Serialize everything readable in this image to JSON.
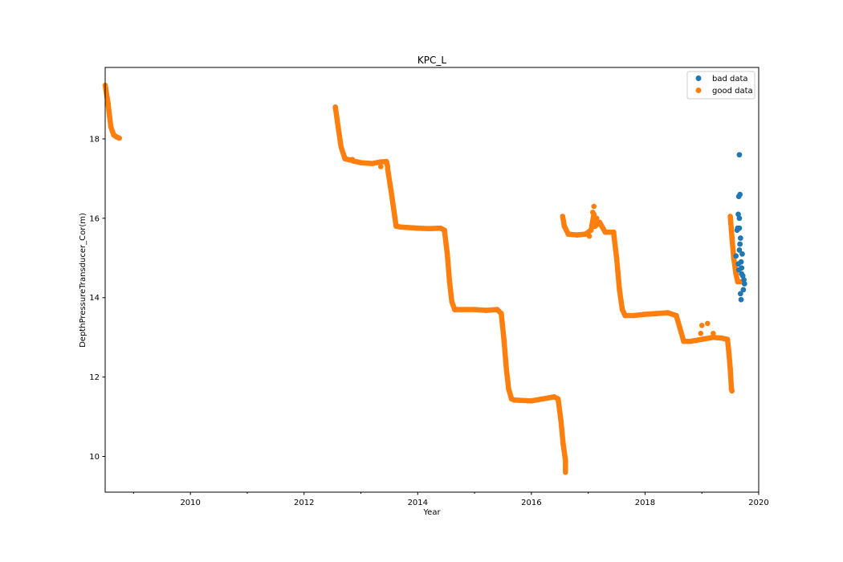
{
  "chart_data": {
    "type": "scatter",
    "title": "KPC_L",
    "xlabel": "Year",
    "ylabel": "DepthPressureTransducer_Cor(m)",
    "xlim": [
      2008.5,
      2020.0
    ],
    "ylim": [
      9.1,
      19.8
    ],
    "x_ticks": [
      2010,
      2012,
      2014,
      2016,
      2018,
      2020
    ],
    "x_tick_labels": [
      "2010",
      "2012",
      "2014",
      "2016",
      "2018",
      "2020"
    ],
    "y_ticks": [
      10,
      12,
      14,
      16,
      18
    ],
    "y_tick_labels": [
      "10",
      "12",
      "14",
      "16",
      "18"
    ],
    "legend_position": "top-right",
    "grid": false,
    "series": [
      {
        "name": "bad data",
        "color": "#1f77b4",
        "points": [
          [
            2012.55,
            18.8
          ],
          [
            2019.6,
            15.05
          ],
          [
            2019.62,
            15.7
          ],
          [
            2019.64,
            16.1
          ],
          [
            2019.65,
            16.55
          ],
          [
            2019.66,
            17.6
          ],
          [
            2019.67,
            16.6
          ],
          [
            2019.66,
            15.75
          ],
          [
            2019.68,
            15.5
          ],
          [
            2019.66,
            15.2
          ],
          [
            2019.69,
            14.9
          ],
          [
            2019.65,
            14.7
          ],
          [
            2019.7,
            14.6
          ],
          [
            2019.72,
            14.55
          ],
          [
            2019.74,
            14.45
          ],
          [
            2019.75,
            14.35
          ],
          [
            2019.73,
            14.2
          ],
          [
            2019.68,
            14.1
          ],
          [
            2019.69,
            13.95
          ],
          [
            2019.67,
            15.35
          ],
          [
            2019.71,
            15.1
          ],
          [
            2019.64,
            14.85
          ],
          [
            2019.7,
            14.75
          ],
          [
            2019.66,
            16.0
          ],
          [
            2019.63,
            15.75
          ]
        ]
      },
      {
        "name": "good data",
        "color": "#ff7f0e",
        "segments": [
          [
            [
              2008.5,
              19.35
            ],
            [
              2008.55,
              18.9
            ],
            [
              2008.6,
              18.3
            ],
            [
              2008.65,
              18.1
            ],
            [
              2008.7,
              18.05
            ],
            [
              2008.75,
              18.02
            ]
          ],
          [
            [
              2012.55,
              18.8
            ],
            [
              2012.6,
              18.3
            ],
            [
              2012.65,
              17.8
            ],
            [
              2012.72,
              17.5
            ],
            [
              2012.8,
              17.47
            ],
            [
              2012.85,
              17.48
            ]
          ],
          [
            [
              2012.85,
              17.45
            ],
            [
              2013.0,
              17.4
            ],
            [
              2013.2,
              17.38
            ],
            [
              2013.35,
              17.42
            ],
            [
              2013.45,
              17.43
            ],
            [
              2013.47,
              17.3
            ]
          ],
          [
            [
              2013.47,
              17.25
            ],
            [
              2013.53,
              16.7
            ],
            [
              2013.58,
              16.2
            ],
            [
              2013.62,
              15.8
            ],
            [
              2013.7,
              15.78
            ]
          ],
          [
            [
              2013.7,
              15.78
            ],
            [
              2014.0,
              15.75
            ],
            [
              2014.2,
              15.74
            ],
            [
              2014.4,
              15.75
            ],
            [
              2014.47,
              15.7
            ]
          ],
          [
            [
              2014.47,
              15.7
            ],
            [
              2014.52,
              15.1
            ],
            [
              2014.56,
              14.4
            ],
            [
              2014.6,
              13.9
            ],
            [
              2014.65,
              13.7
            ],
            [
              2014.7,
              13.7
            ]
          ],
          [
            [
              2014.7,
              13.7
            ],
            [
              2015.0,
              13.7
            ],
            [
              2015.2,
              13.68
            ],
            [
              2015.4,
              13.7
            ],
            [
              2015.47,
              13.6
            ]
          ],
          [
            [
              2015.47,
              13.6
            ],
            [
              2015.52,
              12.9
            ],
            [
              2015.56,
              12.2
            ],
            [
              2015.6,
              11.7
            ],
            [
              2015.65,
              11.45
            ],
            [
              2015.7,
              11.42
            ]
          ],
          [
            [
              2015.7,
              11.42
            ],
            [
              2016.0,
              11.4
            ],
            [
              2016.2,
              11.45
            ],
            [
              2016.4,
              11.5
            ],
            [
              2016.47,
              11.45
            ]
          ],
          [
            [
              2016.47,
              11.45
            ],
            [
              2016.52,
              10.9
            ],
            [
              2016.56,
              10.3
            ],
            [
              2016.6,
              9.9
            ],
            [
              2016.6,
              9.6
            ]
          ],
          [
            [
              2016.55,
              16.05
            ],
            [
              2016.58,
              15.8
            ],
            [
              2016.65,
              15.6
            ],
            [
              2016.8,
              15.58
            ],
            [
              2016.95,
              15.6
            ]
          ],
          [
            [
              2016.95,
              15.6
            ],
            [
              2017.05,
              15.7
            ],
            [
              2017.1,
              16.1
            ],
            [
              2017.12,
              15.8
            ],
            [
              2017.2,
              15.9
            ],
            [
              2017.3,
              15.65
            ],
            [
              2017.45,
              15.65
            ]
          ],
          [
            [
              2017.45,
              15.6
            ],
            [
              2017.5,
              15.0
            ],
            [
              2017.55,
              14.2
            ],
            [
              2017.6,
              13.7
            ],
            [
              2017.65,
              13.55
            ],
            [
              2017.8,
              13.55
            ]
          ],
          [
            [
              2017.8,
              13.55
            ],
            [
              2018.0,
              13.58
            ],
            [
              2018.2,
              13.6
            ],
            [
              2018.4,
              13.62
            ],
            [
              2018.55,
              13.55
            ]
          ],
          [
            [
              2018.55,
              13.55
            ],
            [
              2018.62,
              13.2
            ],
            [
              2018.68,
              12.9
            ],
            [
              2018.8,
              12.9
            ],
            [
              2019.0,
              12.95
            ]
          ],
          [
            [
              2019.0,
              12.95
            ],
            [
              2019.2,
              13.0
            ],
            [
              2019.35,
              12.98
            ],
            [
              2019.45,
              12.95
            ],
            [
              2019.47,
              12.7
            ]
          ],
          [
            [
              2019.47,
              12.7
            ],
            [
              2019.5,
              12.2
            ],
            [
              2019.52,
              11.7
            ],
            [
              2019.53,
              11.65
            ]
          ],
          [
            [
              2019.5,
              16.05
            ],
            [
              2019.53,
              15.5
            ],
            [
              2019.56,
              15.0
            ],
            [
              2019.6,
              14.6
            ],
            [
              2019.63,
              14.4
            ],
            [
              2019.7,
              14.4
            ]
          ]
        ],
        "scatter": [
          [
            2017.1,
            16.3
          ],
          [
            2017.08,
            16.15
          ],
          [
            2017.15,
            16.0
          ],
          [
            2017.02,
            15.55
          ],
          [
            2013.35,
            17.3
          ],
          [
            2019.1,
            13.35
          ],
          [
            2019.0,
            13.3
          ],
          [
            2018.98,
            13.1
          ],
          [
            2019.2,
            13.1
          ]
        ]
      }
    ]
  }
}
